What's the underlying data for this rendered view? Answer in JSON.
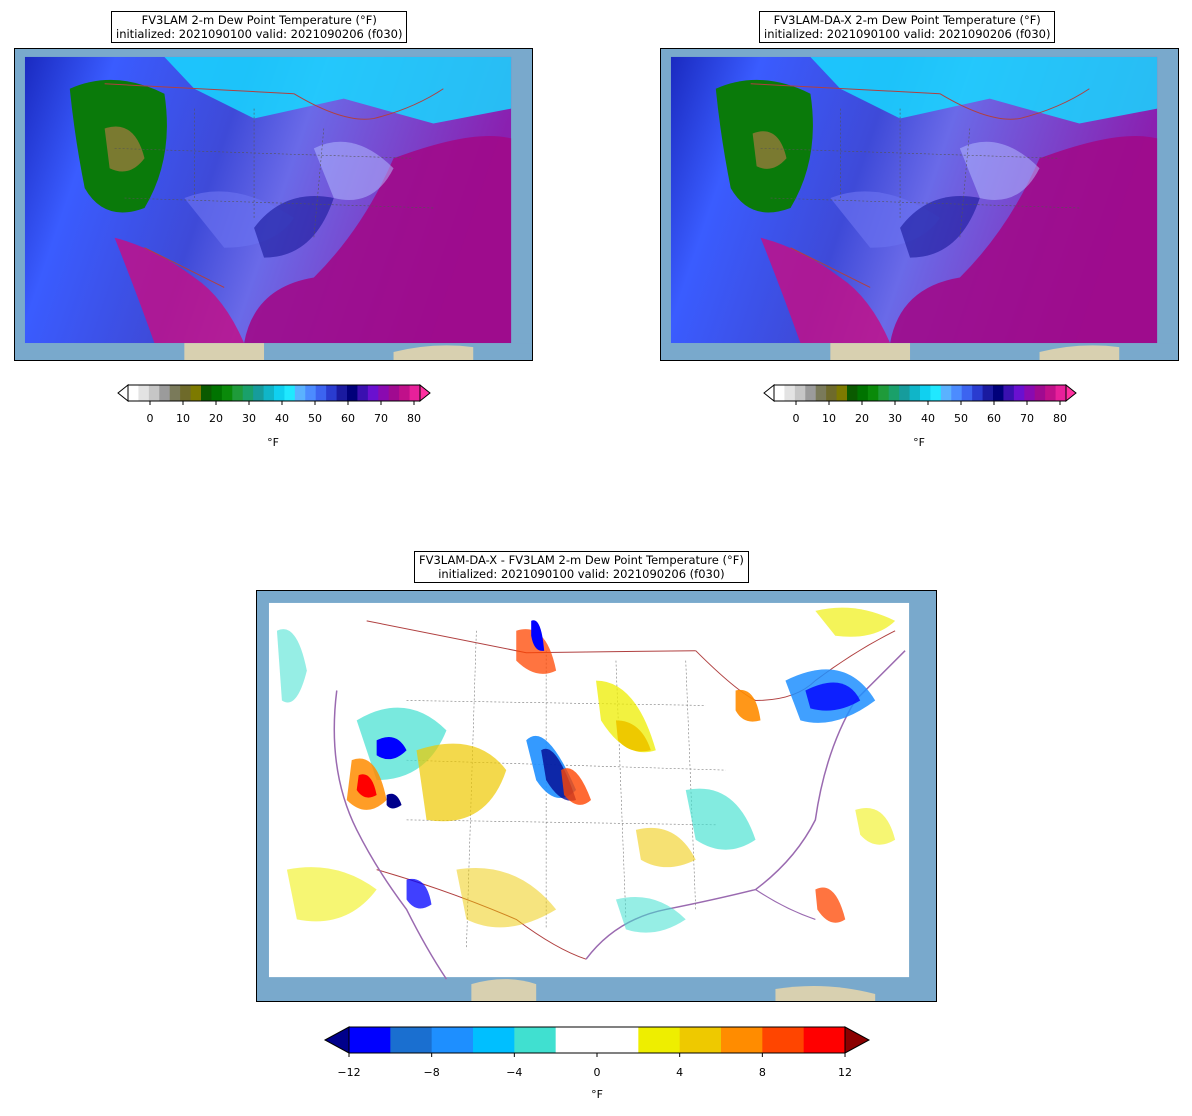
{
  "panels": [
    {
      "title_line1": "FV3LAM 2-m Dew Point Temperature (°F)",
      "title_line2": "initialized: 2021090100 valid: 2021090206 (f030)",
      "colorbar": {
        "ticks": [
          "0",
          "10",
          "20",
          "30",
          "40",
          "50",
          "60",
          "70",
          "80"
        ],
        "unit": "°F",
        "colors": [
          "#ffffff",
          "#e3e3e3",
          "#c6c6c6",
          "#9b9b9b",
          "#7a7a5a",
          "#6e6a2a",
          "#7d7a00",
          "#0a5a00",
          "#007300",
          "#0a8a0a",
          "#1f9b3a",
          "#1aa06a",
          "#169c9c",
          "#10b5c8",
          "#10d0f0",
          "#20e8ff",
          "#5ab2ff",
          "#4c8cff",
          "#3c64f0",
          "#2a3cd0",
          "#1a1aa0",
          "#00007a",
          "#3a10b0",
          "#6a10d0",
          "#8a0ab0",
          "#a00a90",
          "#c0108a",
          "#e8209a"
        ],
        "over_color": "#ff30a0",
        "under_color": "#ffffff"
      }
    },
    {
      "title_line1": "FV3LAM-DA-X 2-m Dew Point Temperature (°F)",
      "title_line2": "initialized: 2021090100 valid: 2021090206 (f030)",
      "colorbar": {
        "ticks": [
          "0",
          "10",
          "20",
          "30",
          "40",
          "50",
          "60",
          "70",
          "80"
        ],
        "unit": "°F",
        "colors": [
          "#ffffff",
          "#e3e3e3",
          "#c6c6c6",
          "#9b9b9b",
          "#7a7a5a",
          "#6e6a2a",
          "#7d7a00",
          "#0a5a00",
          "#007300",
          "#0a8a0a",
          "#1f9b3a",
          "#1aa06a",
          "#169c9c",
          "#10b5c8",
          "#10d0f0",
          "#20e8ff",
          "#5ab2ff",
          "#4c8cff",
          "#3c64f0",
          "#2a3cd0",
          "#1a1aa0",
          "#00007a",
          "#3a10b0",
          "#6a10d0",
          "#8a0ab0",
          "#a00a90",
          "#c0108a",
          "#e8209a"
        ],
        "over_color": "#ff30a0",
        "under_color": "#ffffff"
      }
    }
  ],
  "diff_panel": {
    "title_line1": "FV3LAM-DA-X - FV3LAM 2-m Dew Point Temperature (°F)",
    "title_line2": "initialized: 2021090100 valid: 2021090206 (f030)",
    "colorbar": {
      "ticks": [
        "−12",
        "−8",
        "−4",
        "0",
        "4",
        "8",
        "12"
      ],
      "unit": "°F",
      "colors": [
        "#0000ff",
        "#1a6fd0",
        "#1e8fff",
        "#00bfff",
        "#40e0d0",
        "#ffffff",
        "#ffffff",
        "#eeee00",
        "#eec900",
        "#ff8c00",
        "#ff4500",
        "#ff0000"
      ],
      "under_color": "#00008b",
      "over_color": "#8b0000"
    }
  },
  "colors": {
    "ocean": "#79a9cc",
    "land": "#d8d0b0",
    "border_country": "#b04040",
    "coast": "#9a6ab0",
    "state_lines": "#555555"
  }
}
